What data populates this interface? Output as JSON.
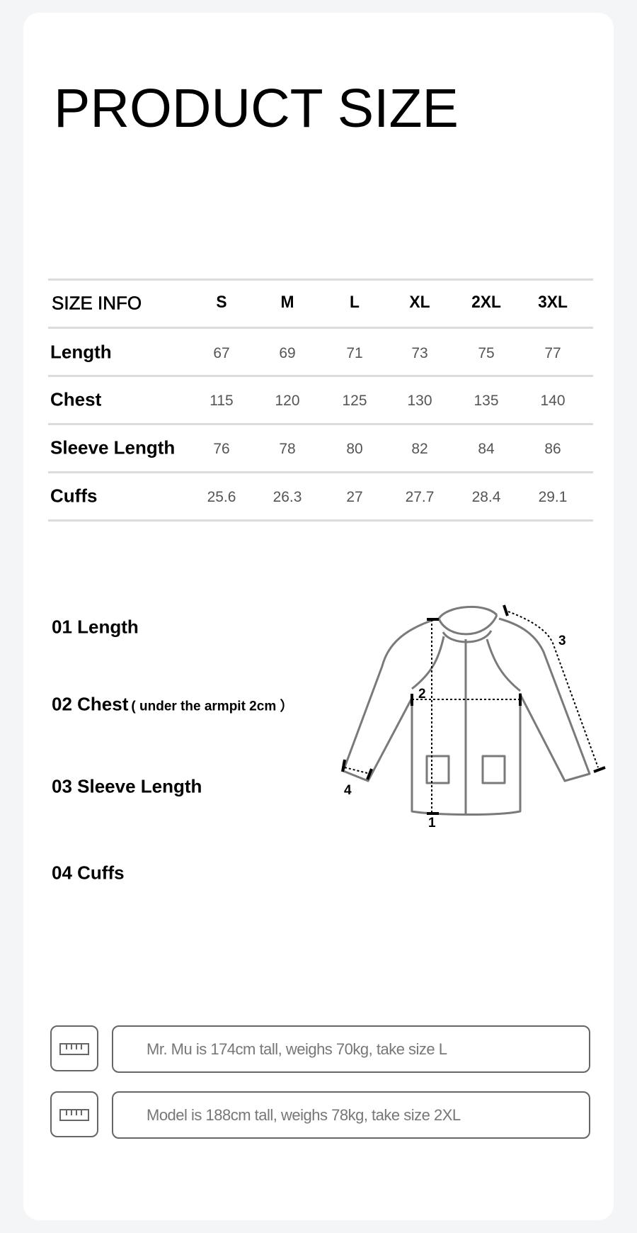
{
  "title": "PRODUCT SIZE",
  "size_table": {
    "header_label": "SIZE INFO",
    "sizes": [
      "S",
      "M",
      "L",
      "XL",
      "2XL",
      "3XL"
    ],
    "rows": [
      {
        "label": "Length",
        "values": [
          "67",
          "69",
          "71",
          "73",
          "75",
          "77"
        ]
      },
      {
        "label": "Chest",
        "values": [
          "115",
          "120",
          "125",
          "130",
          "135",
          "140"
        ]
      },
      {
        "label": "Sleeve Length",
        "values": [
          "76",
          "78",
          "80",
          "82",
          "84",
          "86"
        ]
      },
      {
        "label": "Cuffs",
        "values": [
          "25.6",
          "26.3",
          "27",
          "27.7",
          "28.4",
          "29.1"
        ]
      }
    ]
  },
  "measurements": [
    {
      "label": "01 Length"
    },
    {
      "label": "02 Chest",
      "note": "( under the armpit 2cm ）"
    },
    {
      "label": "03 Sleeve Length"
    },
    {
      "label": "04 Cuffs"
    }
  ],
  "diagram": {
    "icon": "jacket-outline",
    "markers": [
      "1",
      "2",
      "3",
      "4"
    ]
  },
  "model_notes": [
    {
      "icon": "ruler-icon",
      "text": "Mr. Mu is 174cm tall, weighs 70kg, take size L"
    },
    {
      "icon": "ruler-icon",
      "text": "Model is 188cm tall, weighs 78kg, take size 2XL"
    }
  ]
}
